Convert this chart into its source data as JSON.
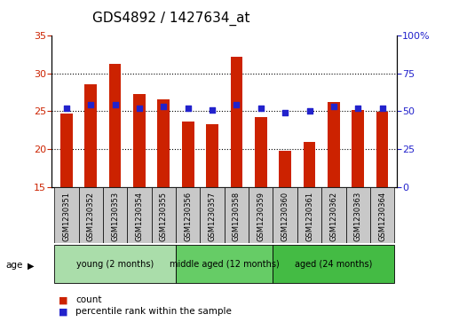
{
  "title": "GDS4892 / 1427634_at",
  "samples": [
    "GSM1230351",
    "GSM1230352",
    "GSM1230353",
    "GSM1230354",
    "GSM1230355",
    "GSM1230356",
    "GSM1230357",
    "GSM1230358",
    "GSM1230359",
    "GSM1230360",
    "GSM1230361",
    "GSM1230362",
    "GSM1230363",
    "GSM1230364"
  ],
  "counts": [
    24.7,
    28.5,
    31.2,
    27.2,
    26.5,
    23.6,
    23.3,
    32.2,
    24.2,
    19.7,
    20.9,
    26.2,
    25.1,
    24.9
  ],
  "percentiles": [
    52,
    54,
    54,
    52,
    53,
    52,
    51,
    54,
    52,
    49,
    50,
    53,
    52,
    52
  ],
  "ylim_left": [
    15,
    35
  ],
  "ylim_right": [
    0,
    100
  ],
  "yticks_left": [
    15,
    20,
    25,
    30,
    35
  ],
  "ytick_labels_right": [
    "0",
    "25",
    "50",
    "75",
    "100%"
  ],
  "bar_color": "#CC2200",
  "dot_color": "#2222CC",
  "grid_color": "#000000",
  "group_box_color": "#C8C8C8",
  "legend_count_label": "count",
  "legend_pct_label": "percentile rank within the sample",
  "ylabel_left_color": "#CC2200",
  "ylabel_right_color": "#2222CC",
  "age_label": "age",
  "groups": [
    {
      "label": "young (2 months)",
      "start": 0,
      "end": 5,
      "color": "#AADDAA"
    },
    {
      "label": "middle aged (12 months)",
      "start": 5,
      "end": 9,
      "color": "#66CC66"
    },
    {
      "label": "aged (24 months)",
      "start": 9,
      "end": 14,
      "color": "#44BB44"
    }
  ],
  "title_fontsize": 11,
  "tick_fontsize": 8,
  "sample_fontsize": 6,
  "group_fontsize": 7,
  "legend_fontsize": 7.5,
  "bar_width": 0.5,
  "dot_size": 18
}
